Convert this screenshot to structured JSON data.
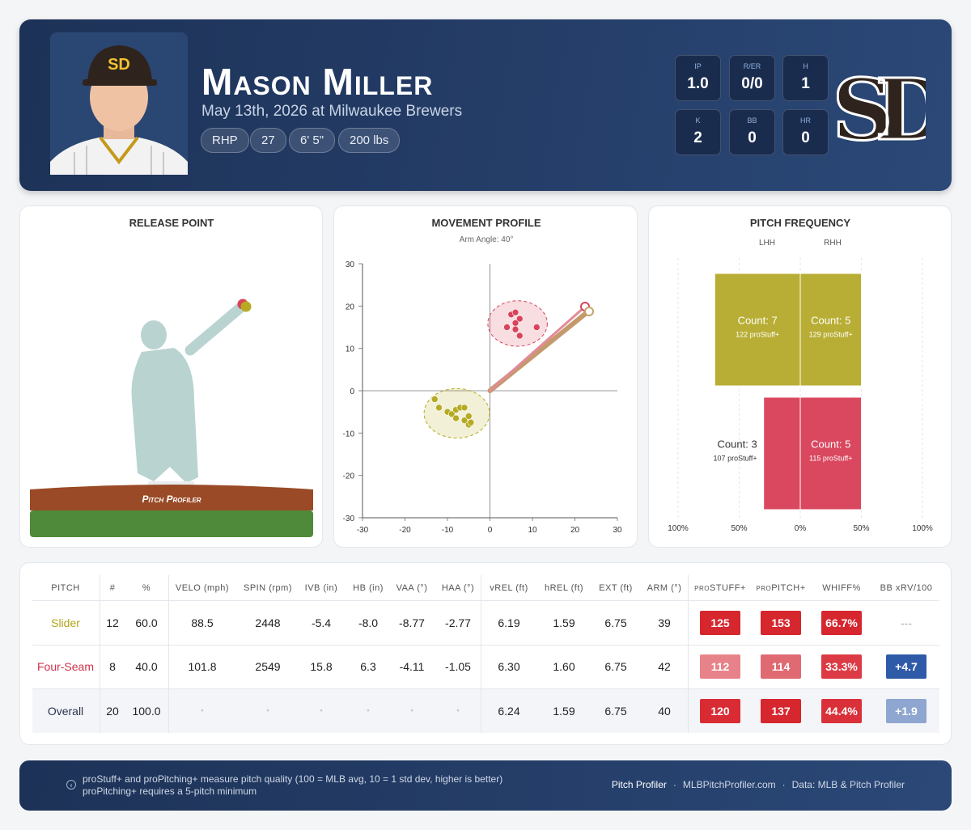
{
  "header": {
    "name": "Mason Miller",
    "subtitle": "May 13th, 2026 at Milwaukee Brewers",
    "tags": [
      "RHP",
      "27",
      "6' 5\"",
      "200 lbs"
    ],
    "stats": [
      {
        "label": "IP",
        "value": "1.0"
      },
      {
        "label": "R/ER",
        "value": "0/0"
      },
      {
        "label": "H",
        "value": "1"
      },
      {
        "label": "K",
        "value": "2"
      },
      {
        "label": "BB",
        "value": "0"
      },
      {
        "label": "HR",
        "value": "0"
      }
    ],
    "logo": "SD"
  },
  "release_point": {
    "title": "RELEASE POINT",
    "brand": "Pitch Profiler"
  },
  "chart_data": [
    {
      "type": "scatter",
      "title": "MOVEMENT PROFILE",
      "subtitle": "Arm Angle: 40°",
      "xlim": [
        -30,
        30
      ],
      "ylim": [
        -30,
        30
      ],
      "xticks": [
        -30,
        -20,
        -10,
        0,
        10,
        20,
        30
      ],
      "yticks": [
        -30,
        -20,
        -10,
        0,
        10,
        20,
        30
      ],
      "series": [
        {
          "color": "#b5aa22",
          "x": [
            -13,
            -12,
            -10,
            -9,
            -8,
            -7,
            -6,
            -8,
            -6,
            -5,
            -5,
            -4.5
          ],
          "values": [
            -2,
            -4,
            -5,
            -5.5,
            -4.5,
            -4,
            -4,
            -6.5,
            -7,
            -8,
            -6,
            -7.5
          ]
        },
        {
          "color": "#d9435b",
          "x": [
            5,
            6,
            7,
            6,
            4,
            6,
            11,
            7
          ],
          "values": [
            18,
            18.5,
            17,
            16,
            15,
            14.5,
            15,
            13
          ]
        }
      ]
    },
    {
      "type": "butterfly",
      "title": "PITCH FREQUENCY",
      "categories": [
        "LHH",
        "RHH"
      ],
      "xlim": [
        -100,
        100
      ],
      "xticks": [
        {
          "value": -100,
          "label": "100%"
        },
        {
          "value": -50,
          "label": "50%"
        },
        {
          "value": 0,
          "label": "0%"
        },
        {
          "value": 50,
          "label": "50%"
        },
        {
          "value": 100,
          "label": "100%"
        }
      ],
      "series": [
        {
          "color": "#b8ae35",
          "values": [
            -70,
            50
          ],
          "count_labels": [
            "Count: 7",
            "Count: 5"
          ],
          "stuff_labels": [
            "122 proStuff+",
            "129 proStuff+"
          ]
        },
        {
          "color": "#d9485f",
          "values": [
            -30,
            50
          ],
          "count_labels": [
            "Count: 3",
            "Count: 5"
          ],
          "stuff_labels": [
            "107 proStuff+",
            "115 proStuff+"
          ]
        }
      ]
    }
  ],
  "table": {
    "headers": [
      "PITCH",
      "#",
      "%",
      "VELO (mph)",
      "SPIN (rpm)",
      "IVB (in)",
      "HB (in)",
      "VAA (°)",
      "HAA (°)",
      "vREL (ft)",
      "hREL (ft)",
      "EXT (ft)",
      "ARM (°)",
      "proSTUFF+",
      "proPITCH+",
      "WHIFF%",
      "BB xRV/100"
    ],
    "rows": [
      [
        "Slider",
        "12",
        "60.0",
        "88.5",
        "2448",
        "-5.4",
        "-8.0",
        "-8.77",
        "-2.77",
        "6.19",
        "1.59",
        "6.75",
        "39",
        "125",
        "153",
        "66.7%",
        "---"
      ],
      [
        "Four-Seam",
        "8",
        "40.0",
        "101.8",
        "2549",
        "15.8",
        "6.3",
        "-4.11",
        "-1.05",
        "6.30",
        "1.60",
        "6.75",
        "42",
        "112",
        "114",
        "33.3%",
        "+4.7"
      ],
      [
        "Overall",
        "20",
        "100.0",
        "•",
        "•",
        "•",
        "•",
        "•",
        "•",
        "6.24",
        "1.59",
        "6.75",
        "40",
        "120",
        "137",
        "44.4%",
        "+1.9"
      ]
    ],
    "name_colors": [
      "#b1a41a",
      "#d2304b",
      "#2a3550"
    ],
    "badge_colors": [
      [
        "#d6262e",
        "#d6262e",
        "#d6262e",
        null
      ],
      [
        "#e8828a",
        "#e06a72",
        "#dc3b45",
        "#2f5aa8"
      ],
      [
        "#d92b33",
        "#d6262e",
        "#d93039",
        "#8ea6d0"
      ]
    ]
  },
  "footer": {
    "note": [
      "proStuff+ and proPitching+ measure pitch quality (100 = MLB avg, 10 = 1 std dev, higher is better)",
      "proPitching+ requires a 5-pitch minimum"
    ],
    "brand": "Pitch Profiler",
    "site": "MLBPitchProfiler.com",
    "source": "Data: MLB & Pitch Profiler"
  }
}
